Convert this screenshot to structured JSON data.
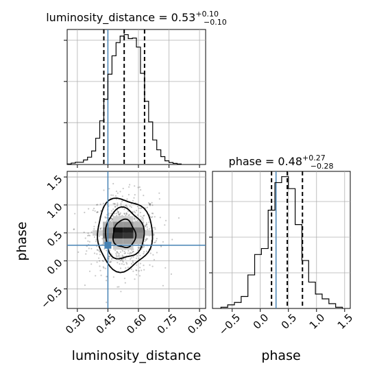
{
  "chart_data": {
    "type": "corner",
    "parameters": [
      {
        "name": "luminosity_distance",
        "title_text": "luminosity_distance = 0.53",
        "title_plus": "+0.10",
        "title_minus": "−0.10",
        "xlabel": "luminosity_distance",
        "truth": 0.45,
        "quantiles": [
          0.43,
          0.53,
          0.63
        ],
        "xlim": [
          0.25,
          0.93
        ],
        "ticks": [
          0.3,
          0.45,
          0.6,
          0.75,
          0.9
        ],
        "tick_labels": [
          "0.30",
          "0.45",
          "0.60",
          "0.75",
          "0.90"
        ],
        "hist_bins": [
          0.25,
          0.27,
          0.29,
          0.31,
          0.33,
          0.35,
          0.37,
          0.39,
          0.41,
          0.43,
          0.45,
          0.47,
          0.49,
          0.51,
          0.53,
          0.55,
          0.57,
          0.59,
          0.61,
          0.63,
          0.65,
          0.67,
          0.69,
          0.71,
          0.73,
          0.75,
          0.77,
          0.79,
          0.81
        ],
        "hist_values": [
          0.4,
          1.0,
          1.6,
          1.6,
          3.2,
          5.2,
          9.6,
          18.6,
          31.0,
          46.2,
          64.0,
          77.0,
          86.4,
          91.0,
          92.0,
          89.2,
          89.6,
          83.2,
          64.6,
          44.8,
          30.2,
          17.4,
          10.4,
          5.6,
          2.6,
          1.4,
          0.8,
          0.4
        ]
      },
      {
        "name": "phase",
        "title_text": "phase = 0.48",
        "title_plus": "+0.27",
        "title_minus": "−0.28",
        "xlabel": "phase",
        "ylabel": "phase",
        "truth": 0.28,
        "quantiles": [
          0.2,
          0.48,
          0.75
        ],
        "xlim": [
          -0.85,
          1.6
        ],
        "ylim": [
          -0.85,
          1.6
        ],
        "ticks": [
          -0.5,
          0.0,
          0.5,
          1.0,
          1.5
        ],
        "tick_labels": [
          "−0.5",
          "0.0",
          "0.5",
          "1.0",
          "1.5"
        ],
        "hist_bins": [
          -0.7,
          -0.58,
          -0.46,
          -0.34,
          -0.22,
          -0.1,
          0.02,
          0.14,
          0.26,
          0.38,
          0.5,
          0.62,
          0.74,
          0.86,
          0.98,
          1.1,
          1.22,
          1.34,
          1.46
        ],
        "hist_values": [
          1,
          3,
          5,
          10,
          28,
          45,
          50,
          82,
          105,
          110,
          100,
          70,
          40,
          22,
          12,
          8,
          4,
          1
        ]
      }
    ],
    "joint": {
      "contour_center": [
        0.53,
        0.48
      ],
      "contour_levels": [
        {
          "rx": 0.055,
          "ry": 0.25
        },
        {
          "rx": 0.095,
          "ry": 0.45
        },
        {
          "rx": 0.135,
          "ry": 0.64
        }
      ],
      "density_cells": [
        {
          "x": 0.5,
          "y": 0.55,
          "v": 1.0
        },
        {
          "x": 0.55,
          "y": 0.55,
          "v": 0.95
        },
        {
          "x": 0.5,
          "y": 0.45,
          "v": 0.9
        },
        {
          "x": 0.55,
          "y": 0.45,
          "v": 0.85
        },
        {
          "x": 0.45,
          "y": 0.45,
          "v": 0.55
        },
        {
          "x": 0.45,
          "y": 0.55,
          "v": 0.5
        },
        {
          "x": 0.6,
          "y": 0.55,
          "v": 0.55
        },
        {
          "x": 0.6,
          "y": 0.45,
          "v": 0.5
        },
        {
          "x": 0.5,
          "y": 0.65,
          "v": 0.45
        },
        {
          "x": 0.55,
          "y": 0.65,
          "v": 0.45
        },
        {
          "x": 0.5,
          "y": 0.35,
          "v": 0.4
        },
        {
          "x": 0.55,
          "y": 0.35,
          "v": 0.4
        },
        {
          "x": 0.45,
          "y": 0.65,
          "v": 0.3
        },
        {
          "x": 0.6,
          "y": 0.65,
          "v": 0.3
        },
        {
          "x": 0.45,
          "y": 0.35,
          "v": 0.3
        },
        {
          "x": 0.6,
          "y": 0.35,
          "v": 0.3
        },
        {
          "x": 0.5,
          "y": 0.75,
          "v": 0.2
        },
        {
          "x": 0.55,
          "y": 0.75,
          "v": 0.2
        },
        {
          "x": 0.5,
          "y": 0.25,
          "v": 0.2
        },
        {
          "x": 0.55,
          "y": 0.25,
          "v": 0.2
        },
        {
          "x": 0.4,
          "y": 0.5,
          "v": 0.2
        },
        {
          "x": 0.65,
          "y": 0.5,
          "v": 0.2
        }
      ]
    },
    "truth_color": "#4682b4",
    "contour_color": "#000000",
    "quantile_color": "#000000",
    "grid": true
  }
}
